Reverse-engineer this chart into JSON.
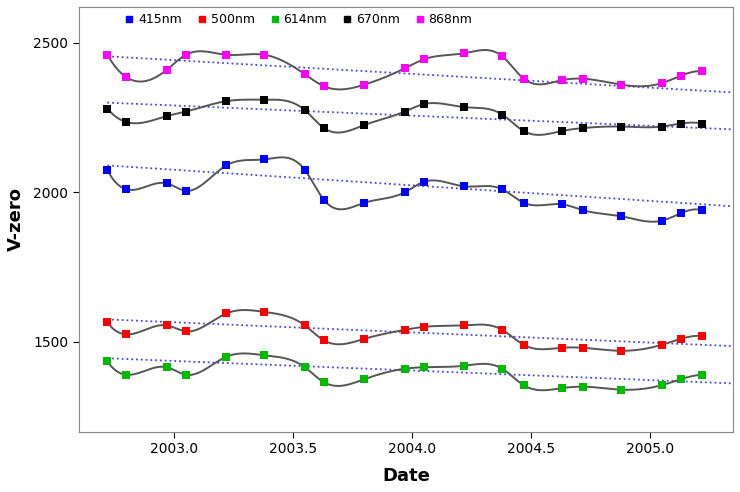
{
  "title": "",
  "xlabel": "Date",
  "ylabel": "V-zero",
  "xlim": [
    2002.6,
    2005.35
  ],
  "ylim": [
    1200,
    2620
  ],
  "yticks": [
    1500,
    2000,
    2500
  ],
  "xticks": [
    2003.0,
    2003.5,
    2004.0,
    2004.5,
    2005.0
  ],
  "legend_entries": [
    "415nm",
    "500nm",
    "614nm",
    "670nm",
    "868nm"
  ],
  "legend_colors": [
    "#0000FF",
    "#FF0000",
    "#00BB00",
    "#000000",
    "#FF00FF"
  ],
  "channels": {
    "868nm": {
      "color": "#FF00FF",
      "x": [
        2002.72,
        2002.8,
        2002.97,
        2003.05,
        2003.22,
        2003.38,
        2003.55,
        2003.63,
        2003.8,
        2003.97,
        2004.05,
        2004.22,
        2004.38,
        2004.47,
        2004.63,
        2004.72,
        2004.88,
        2005.05,
        2005.13,
        2005.22
      ],
      "y": [
        2460,
        2385,
        2410,
        2460,
        2460,
        2460,
        2395,
        2355,
        2360,
        2415,
        2445,
        2465,
        2455,
        2380,
        2375,
        2380,
        2360,
        2365,
        2390,
        2405
      ],
      "trend_y0": 2455,
      "trend_y1": 2340
    },
    "670nm": {
      "color": "#000000",
      "x": [
        2002.72,
        2002.8,
        2002.97,
        2003.05,
        2003.22,
        2003.38,
        2003.55,
        2003.63,
        2003.8,
        2003.97,
        2004.05,
        2004.22,
        2004.38,
        2004.47,
        2004.63,
        2004.72,
        2004.88,
        2005.05,
        2005.13,
        2005.22
      ],
      "y": [
        2280,
        2235,
        2255,
        2270,
        2305,
        2310,
        2275,
        2215,
        2225,
        2270,
        2295,
        2285,
        2260,
        2205,
        2205,
        2215,
        2220,
        2220,
        2230,
        2230
      ],
      "trend_y0": 2300,
      "trend_y1": 2215
    },
    "415nm": {
      "color": "#0000FF",
      "x": [
        2002.72,
        2002.8,
        2002.97,
        2003.05,
        2003.22,
        2003.38,
        2003.55,
        2003.63,
        2003.8,
        2003.97,
        2004.05,
        2004.22,
        2004.38,
        2004.47,
        2004.63,
        2004.72,
        2004.88,
        2005.05,
        2005.13,
        2005.22
      ],
      "y": [
        2075,
        2010,
        2030,
        2005,
        2090,
        2110,
        2075,
        1975,
        1965,
        2000,
        2035,
        2020,
        2010,
        1965,
        1960,
        1940,
        1920,
        1905,
        1930,
        1940
      ],
      "trend_y0": 2090,
      "trend_y1": 1960
    },
    "500nm": {
      "color": "#FF0000",
      "x": [
        2002.72,
        2002.8,
        2002.97,
        2003.05,
        2003.22,
        2003.38,
        2003.55,
        2003.63,
        2003.8,
        2003.97,
        2004.05,
        2004.22,
        2004.38,
        2004.47,
        2004.63,
        2004.72,
        2004.88,
        2005.05,
        2005.13,
        2005.22
      ],
      "y": [
        1565,
        1525,
        1555,
        1535,
        1595,
        1600,
        1555,
        1505,
        1510,
        1540,
        1550,
        1555,
        1540,
        1490,
        1480,
        1480,
        1470,
        1490,
        1510,
        1520
      ],
      "trend_y0": 1575,
      "trend_y1": 1490
    },
    "614nm": {
      "color": "#00BB00",
      "x": [
        2002.72,
        2002.8,
        2002.97,
        2003.05,
        2003.22,
        2003.38,
        2003.55,
        2003.63,
        2003.8,
        2003.97,
        2004.05,
        2004.22,
        2004.38,
        2004.47,
        2004.63,
        2004.72,
        2004.88,
        2005.05,
        2005.13,
        2005.22
      ],
      "y": [
        1435,
        1390,
        1415,
        1390,
        1450,
        1455,
        1415,
        1365,
        1375,
        1410,
        1415,
        1420,
        1410,
        1355,
        1345,
        1350,
        1340,
        1355,
        1375,
        1390
      ],
      "trend_y0": 1445,
      "trend_y1": 1365
    }
  },
  "background_color": "#ffffff",
  "figure_size": [
    7.4,
    4.92
  ],
  "dpi": 100
}
